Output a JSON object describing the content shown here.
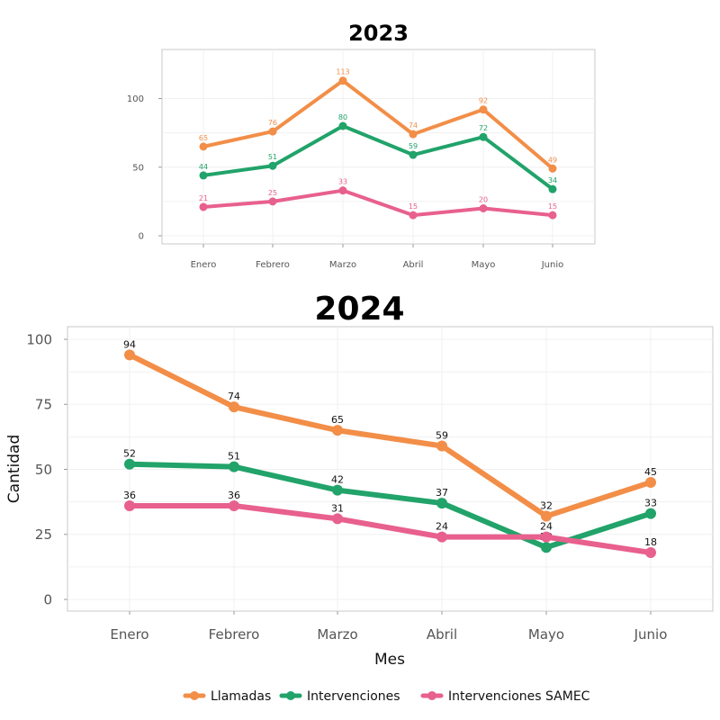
{
  "chart_data": [
    {
      "type": "line",
      "title": "2023",
      "categories": [
        "Enero",
        "Febrero",
        "Marzo",
        "Abril",
        "Mayo",
        "Junio"
      ],
      "ylim": [
        0,
        120
      ],
      "yticks": [
        0,
        50,
        100
      ],
      "xlabel": "",
      "ylabel": "",
      "grid": true,
      "series": [
        {
          "name": "Llamadas",
          "color": "#f28e48",
          "values": [
            65,
            76,
            113,
            74,
            92,
            49
          ]
        },
        {
          "name": "Intervenciones",
          "color": "#21a36a",
          "values": [
            44,
            51,
            80,
            59,
            72,
            34
          ]
        },
        {
          "name": "Intervenciones SAMEC",
          "color": "#e8608d",
          "values": [
            21,
            25,
            33,
            15,
            20,
            15
          ]
        }
      ]
    },
    {
      "type": "line",
      "title": "2024",
      "categories": [
        "Enero",
        "Febrero",
        "Marzo",
        "Abril",
        "Mayo",
        "Junio"
      ],
      "ylim": [
        0,
        100
      ],
      "yticks": [
        0,
        25,
        50,
        75,
        100
      ],
      "xlabel": "Mes",
      "ylabel": "Cantidad",
      "grid": true,
      "series": [
        {
          "name": "Llamadas",
          "color": "#f28e48",
          "values": [
            94,
            74,
            65,
            59,
            32,
            45
          ]
        },
        {
          "name": "Intervenciones",
          "color": "#21a36a",
          "values": [
            52,
            51,
            42,
            37,
            20,
            33
          ]
        },
        {
          "name": "Intervenciones SAMEC",
          "color": "#e8608d",
          "values": [
            36,
            36,
            31,
            24,
            24,
            18
          ]
        }
      ]
    }
  ],
  "legend": {
    "position": "bottom",
    "items": [
      "Llamadas",
      "Intervenciones",
      "Intervenciones SAMEC"
    ]
  }
}
